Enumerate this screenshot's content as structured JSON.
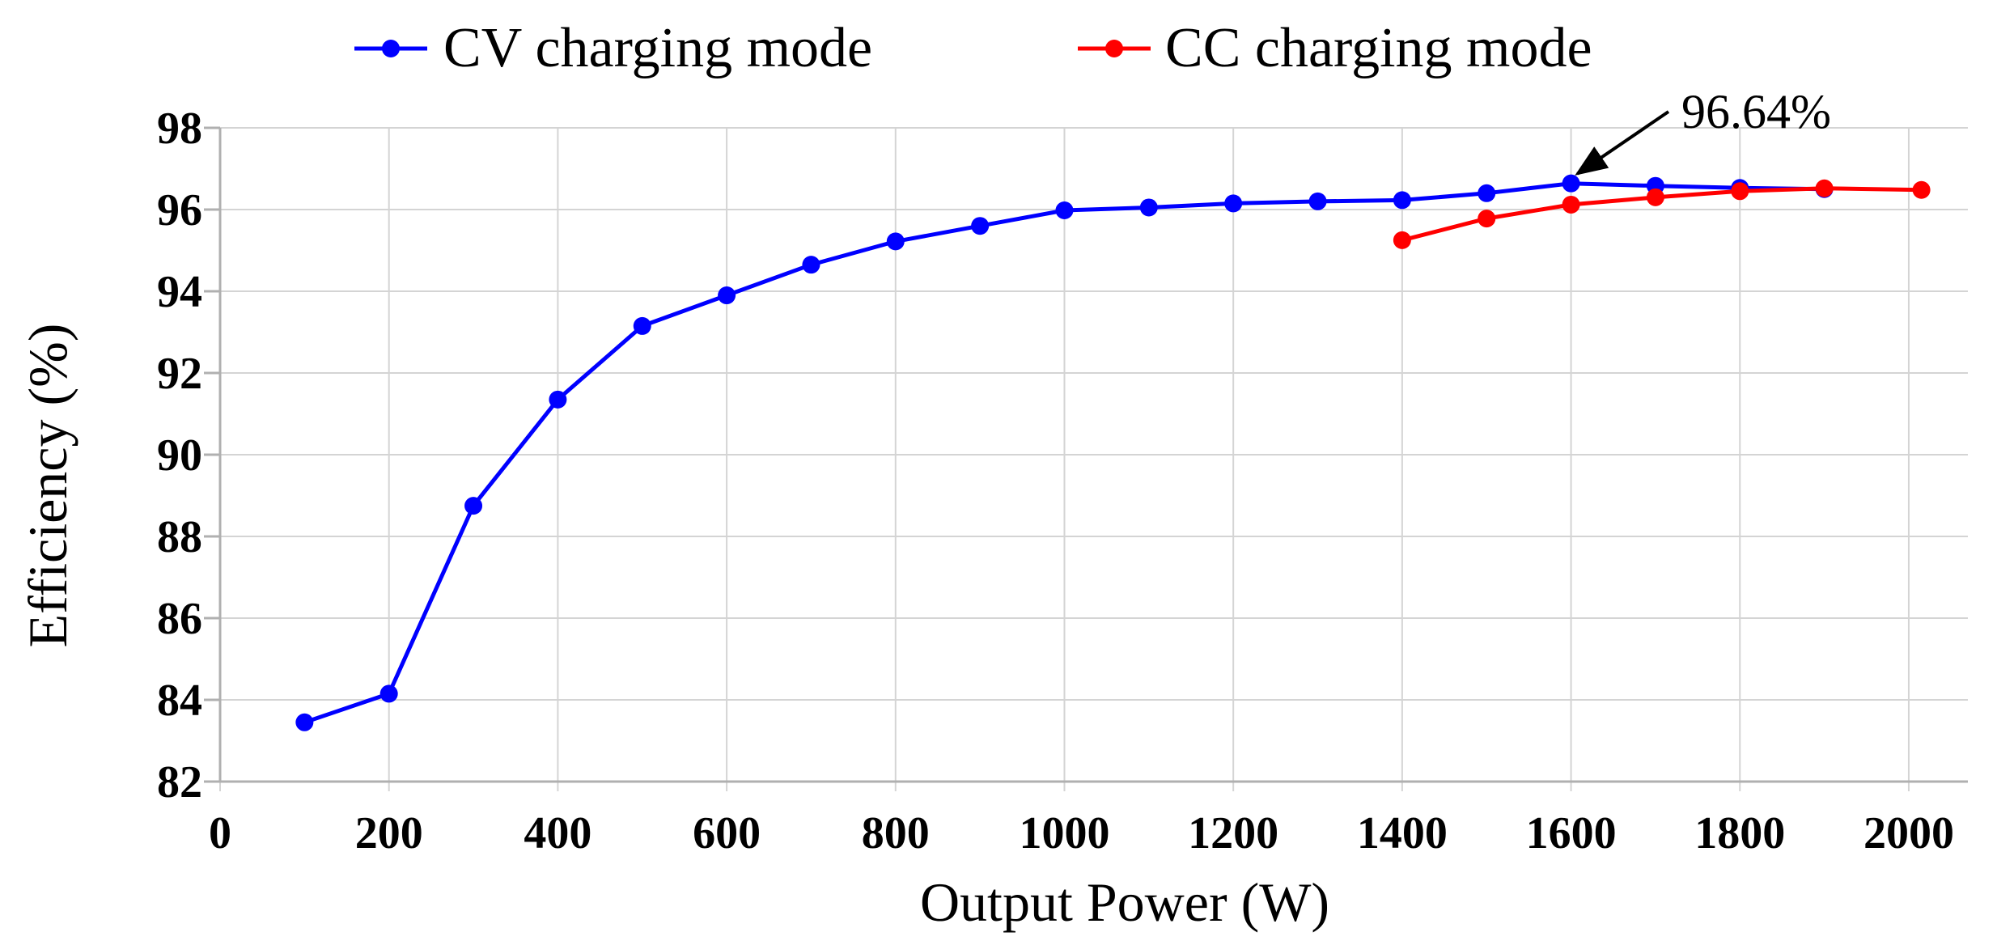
{
  "chart_data": {
    "type": "line",
    "xlabel": "Output Power  (W)",
    "ylabel": "Efficiency  (%)",
    "xlim": [
      0,
      2070
    ],
    "ylim": [
      82,
      98
    ],
    "xticks": [
      0,
      200,
      400,
      600,
      800,
      1000,
      1200,
      1400,
      1600,
      1800,
      2000
    ],
    "yticks": [
      82,
      84,
      86,
      88,
      90,
      92,
      94,
      96,
      98
    ],
    "grid": true,
    "legend_position": "top",
    "series": [
      {
        "name": "CV charging mode",
        "color": "#0000ff",
        "x": [
          100,
          200,
          300,
          400,
          500,
          600,
          700,
          800,
          900,
          1000,
          1100,
          1200,
          1300,
          1400,
          1500,
          1600,
          1700,
          1800,
          1900
        ],
        "y": [
          83.45,
          84.15,
          88.75,
          91.35,
          93.15,
          93.9,
          94.65,
          95.22,
          95.6,
          95.98,
          96.05,
          96.15,
          96.2,
          96.23,
          96.4,
          96.64,
          96.58,
          96.53,
          96.5
        ]
      },
      {
        "name": "CC charging mode",
        "color": "#ff0000",
        "x": [
          1400,
          1500,
          1600,
          1700,
          1800,
          1900,
          2015
        ],
        "y": [
          95.25,
          95.78,
          96.12,
          96.3,
          96.45,
          96.52,
          96.48
        ]
      }
    ],
    "annotations": [
      {
        "text": "96.64%",
        "x": 1600,
        "y": 96.64
      }
    ]
  }
}
